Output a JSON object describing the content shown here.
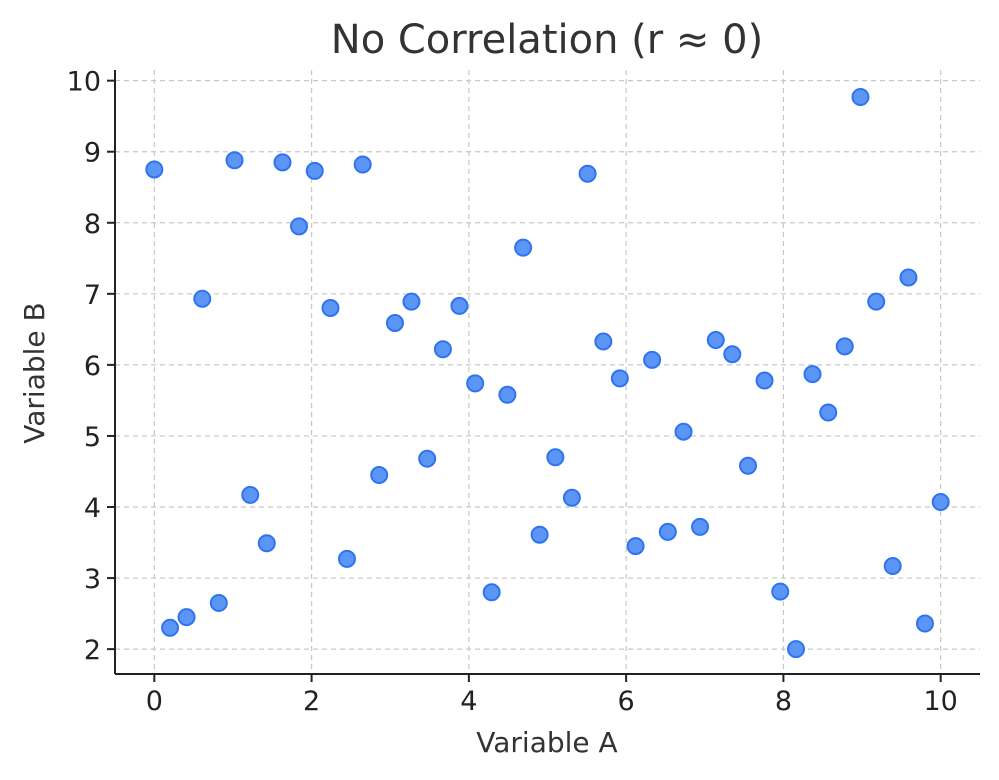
{
  "chart_data": {
    "type": "scatter",
    "title": "No Correlation (r ≈ 0)",
    "xlabel": "Variable A",
    "ylabel": "Variable B",
    "xlim": [
      -0.5,
      10.5
    ],
    "ylim": [
      1.65,
      10.15
    ],
    "xticks": [
      0,
      2,
      4,
      6,
      8,
      10
    ],
    "yticks": [
      2,
      3,
      4,
      5,
      6,
      7,
      8,
      9,
      10
    ],
    "grid": true,
    "legend": "none",
    "point_color": "#5b96f7",
    "series": [
      {
        "x": [
          0.0,
          0.2,
          0.41,
          0.61,
          0.82,
          1.02,
          1.22,
          1.43,
          1.63,
          1.84,
          2.04,
          2.24,
          2.45,
          2.65,
          2.86,
          3.06,
          3.27,
          3.47,
          3.67,
          3.88,
          4.08,
          4.29,
          4.49,
          4.69,
          4.9,
          5.1,
          5.31,
          5.51,
          5.71,
          5.92,
          6.12,
          6.33,
          6.53,
          6.73,
          6.94,
          7.14,
          7.35,
          7.55,
          7.76,
          7.96,
          8.16,
          8.37,
          8.57,
          8.78,
          8.98,
          9.18,
          9.39,
          9.59,
          9.8,
          10.0
        ],
        "y": [
          8.75,
          2.3,
          2.45,
          6.93,
          2.65,
          8.88,
          4.17,
          3.49,
          8.85,
          7.95,
          8.73,
          6.8,
          3.27,
          8.82,
          4.45,
          6.59,
          6.89,
          4.68,
          6.22,
          6.83,
          5.74,
          2.8,
          5.58,
          7.65,
          3.61,
          4.7,
          4.13,
          8.69,
          6.33,
          5.81,
          3.45,
          6.07,
          3.65,
          5.06,
          3.72,
          6.35,
          6.15,
          4.58,
          5.78,
          2.81,
          2.0,
          5.87,
          5.33,
          6.26,
          9.77,
          6.89,
          3.17,
          7.23,
          2.36,
          4.07
        ]
      }
    ]
  }
}
